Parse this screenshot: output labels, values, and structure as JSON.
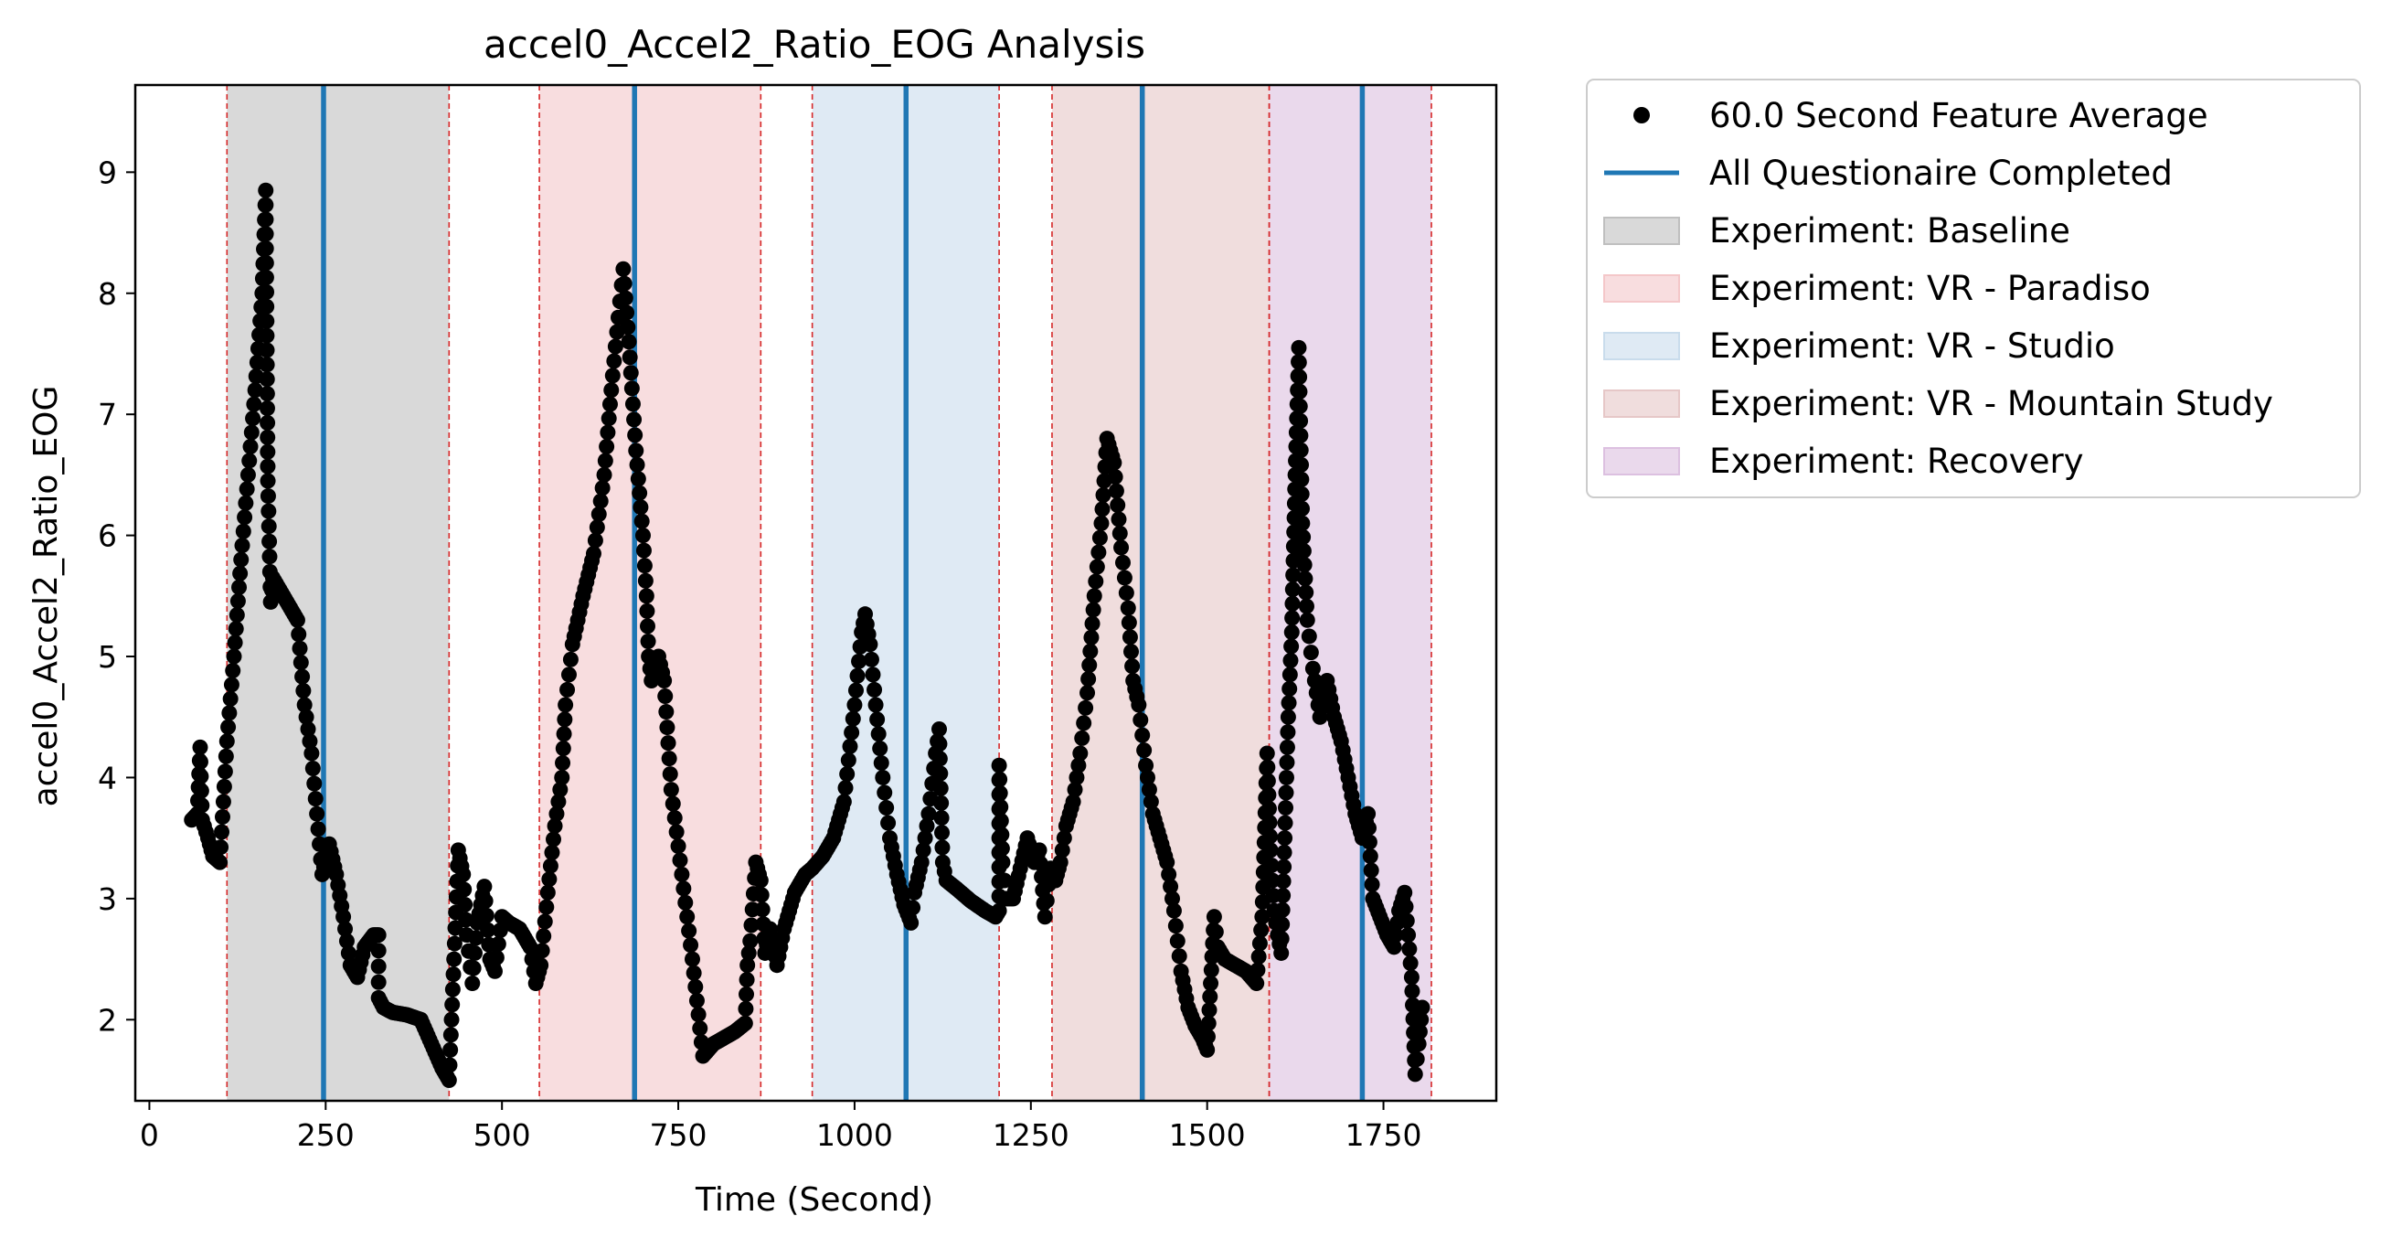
{
  "chart_data": {
    "type": "scatter",
    "title": "accel0_Accel2_Ratio_EOG Analysis",
    "xlabel": "Time (Second)",
    "ylabel": "accel0_Accel2_Ratio_EOG",
    "xlim": [
      -20,
      1910
    ],
    "ylim": [
      1.33,
      9.72
    ],
    "x_ticks": [
      0,
      250,
      500,
      750,
      1000,
      1250,
      1500,
      1750
    ],
    "y_ticks": [
      2,
      3,
      4,
      5,
      6,
      7,
      8,
      9
    ],
    "grid": false,
    "legend_position": "outside-upper-right",
    "point_color": "#000000",
    "line_color": "#1f77b4",
    "boundary_color": "#d62728",
    "legend": {
      "points": "60.0 Second Feature Average",
      "lines": "All Questionaire Completed"
    },
    "experiments": [
      {
        "name": "Experiment: Baseline",
        "start": 110,
        "end": 425,
        "color": "#bfbfbf"
      },
      {
        "name": "Experiment: VR - Paradiso",
        "start": 553,
        "end": 867,
        "color": "#f4c7c9"
      },
      {
        "name": "Experiment: VR - Studio",
        "start": 940,
        "end": 1205,
        "color": "#c9dcec"
      },
      {
        "name": "Experiment: VR - Mountain Study",
        "start": 1280,
        "end": 1588,
        "color": "#e6c7c7"
      },
      {
        "name": "Experiment: Recovery",
        "start": 1588,
        "end": 1818,
        "color": "#dcc0e0"
      }
    ],
    "questionnaire_completed": [
      247,
      688,
      1073,
      1408,
      1720
    ],
    "series_anchors": [
      [
        60,
        3.65
      ],
      [
        68,
        3.7
      ],
      [
        72,
        4.25
      ],
      [
        75,
        3.65
      ],
      [
        83,
        3.5
      ],
      [
        90,
        3.35
      ],
      [
        100,
        3.3
      ],
      [
        110,
        4.3
      ],
      [
        120,
        5.0
      ],
      [
        130,
        5.8
      ],
      [
        140,
        6.5
      ],
      [
        150,
        7.2
      ],
      [
        160,
        8.0
      ],
      [
        165,
        8.85
      ],
      [
        168,
        6.45
      ],
      [
        172,
        5.45
      ],
      [
        175,
        5.65
      ],
      [
        185,
        5.55
      ],
      [
        200,
        5.4
      ],
      [
        210,
        5.3
      ],
      [
        220,
        4.6
      ],
      [
        230,
        4.2
      ],
      [
        245,
        3.2
      ],
      [
        255,
        3.45
      ],
      [
        265,
        3.2
      ],
      [
        275,
        2.85
      ],
      [
        285,
        2.45
      ],
      [
        295,
        2.35
      ],
      [
        305,
        2.6
      ],
      [
        318,
        2.7
      ],
      [
        325,
        2.7
      ],
      [
        325,
        2.18
      ],
      [
        332,
        2.1
      ],
      [
        345,
        2.06
      ],
      [
        365,
        2.04
      ],
      [
        385,
        2.0
      ],
      [
        400,
        1.8
      ],
      [
        415,
        1.6
      ],
      [
        425,
        1.5
      ],
      [
        432,
        2.5
      ],
      [
        438,
        3.4
      ],
      [
        445,
        3.2
      ],
      [
        450,
        2.7
      ],
      [
        458,
        2.3
      ],
      [
        465,
        2.8
      ],
      [
        475,
        3.1
      ],
      [
        483,
        2.5
      ],
      [
        490,
        2.4
      ],
      [
        500,
        2.85
      ],
      [
        510,
        2.8
      ],
      [
        525,
        2.75
      ],
      [
        540,
        2.6
      ],
      [
        548,
        2.3
      ],
      [
        555,
        2.45
      ],
      [
        565,
        3.05
      ],
      [
        575,
        3.6
      ],
      [
        585,
        4.0
      ],
      [
        590,
        4.6
      ],
      [
        600,
        5.1
      ],
      [
        615,
        5.5
      ],
      [
        630,
        5.85
      ],
      [
        645,
        6.5
      ],
      [
        655,
        7.2
      ],
      [
        665,
        7.8
      ],
      [
        672,
        8.2
      ],
      [
        680,
        7.6
      ],
      [
        690,
        6.7
      ],
      [
        700,
        6.0
      ],
      [
        705,
        5.5
      ],
      [
        708,
        5.0
      ],
      [
        712,
        4.8
      ],
      [
        722,
        5.0
      ],
      [
        730,
        4.8
      ],
      [
        740,
        3.9
      ],
      [
        755,
        3.2
      ],
      [
        770,
        2.5
      ],
      [
        785,
        1.7
      ],
      [
        800,
        1.8
      ],
      [
        830,
        1.9
      ],
      [
        845,
        1.97
      ],
      [
        848,
        2.45
      ],
      [
        852,
        2.65
      ],
      [
        860,
        3.3
      ],
      [
        867,
        3.15
      ],
      [
        873,
        2.55
      ],
      [
        880,
        2.75
      ],
      [
        890,
        2.45
      ],
      [
        900,
        2.75
      ],
      [
        915,
        3.05
      ],
      [
        930,
        3.2
      ],
      [
        940,
        3.25
      ],
      [
        955,
        3.35
      ],
      [
        970,
        3.5
      ],
      [
        985,
        3.8
      ],
      [
        1000,
        4.6
      ],
      [
        1010,
        5.2
      ],
      [
        1015,
        5.35
      ],
      [
        1022,
        5.1
      ],
      [
        1030,
        4.6
      ],
      [
        1040,
        4.0
      ],
      [
        1050,
        3.5
      ],
      [
        1060,
        3.2
      ],
      [
        1070,
        2.95
      ],
      [
        1080,
        2.8
      ],
      [
        1085,
        3.05
      ],
      [
        1095,
        3.3
      ],
      [
        1105,
        3.7
      ],
      [
        1115,
        4.2
      ],
      [
        1120,
        4.4
      ],
      [
        1125,
        3.3
      ],
      [
        1130,
        3.15
      ],
      [
        1145,
        3.08
      ],
      [
        1165,
        2.98
      ],
      [
        1185,
        2.9
      ],
      [
        1200,
        2.85
      ],
      [
        1205,
        2.9
      ],
      [
        1205,
        4.1
      ],
      [
        1210,
        3.3
      ],
      [
        1215,
        3.0
      ],
      [
        1225,
        3.0
      ],
      [
        1235,
        3.25
      ],
      [
        1245,
        3.5
      ],
      [
        1255,
        3.3
      ],
      [
        1262,
        3.4
      ],
      [
        1270,
        2.85
      ],
      [
        1278,
        3.25
      ],
      [
        1285,
        3.15
      ],
      [
        1292,
        3.3
      ],
      [
        1300,
        3.6
      ],
      [
        1310,
        3.8
      ],
      [
        1320,
        4.2
      ],
      [
        1330,
        4.7
      ],
      [
        1340,
        5.5
      ],
      [
        1350,
        6.1
      ],
      [
        1358,
        6.8
      ],
      [
        1368,
        6.6
      ],
      [
        1378,
        5.9
      ],
      [
        1388,
        5.4
      ],
      [
        1395,
        4.8
      ],
      [
        1403,
        4.6
      ],
      [
        1413,
        4.1
      ],
      [
        1423,
        3.7
      ],
      [
        1433,
        3.5
      ],
      [
        1443,
        3.3
      ],
      [
        1453,
        2.9
      ],
      [
        1463,
        2.4
      ],
      [
        1473,
        2.1
      ],
      [
        1483,
        1.95
      ],
      [
        1493,
        1.85
      ],
      [
        1500,
        1.75
      ],
      [
        1505,
        2.3
      ],
      [
        1510,
        2.85
      ],
      [
        1515,
        2.6
      ],
      [
        1525,
        2.5
      ],
      [
        1540,
        2.45
      ],
      [
        1555,
        2.4
      ],
      [
        1570,
        2.3
      ],
      [
        1578,
        2.85
      ],
      [
        1585,
        4.2
      ],
      [
        1590,
        3.4
      ],
      [
        1595,
        2.9
      ],
      [
        1600,
        2.7
      ],
      [
        1605,
        2.55
      ],
      [
        1610,
        3.5
      ],
      [
        1615,
        4.5
      ],
      [
        1620,
        5.2
      ],
      [
        1625,
        6.5
      ],
      [
        1630,
        7.55
      ],
      [
        1635,
        6.1
      ],
      [
        1642,
        5.3
      ],
      [
        1650,
        4.9
      ],
      [
        1660,
        4.5
      ],
      [
        1670,
        4.8
      ],
      [
        1680,
        4.5
      ],
      [
        1690,
        4.3
      ],
      [
        1700,
        4.0
      ],
      [
        1710,
        3.7
      ],
      [
        1720,
        3.5
      ],
      [
        1728,
        3.7
      ],
      [
        1735,
        3.0
      ],
      [
        1745,
        2.85
      ],
      [
        1755,
        2.7
      ],
      [
        1765,
        2.6
      ],
      [
        1772,
        2.9
      ],
      [
        1780,
        3.05
      ],
      [
        1790,
        2.35
      ],
      [
        1795,
        1.55
      ],
      [
        1800,
        1.8
      ],
      [
        1805,
        2.1
      ]
    ]
  }
}
